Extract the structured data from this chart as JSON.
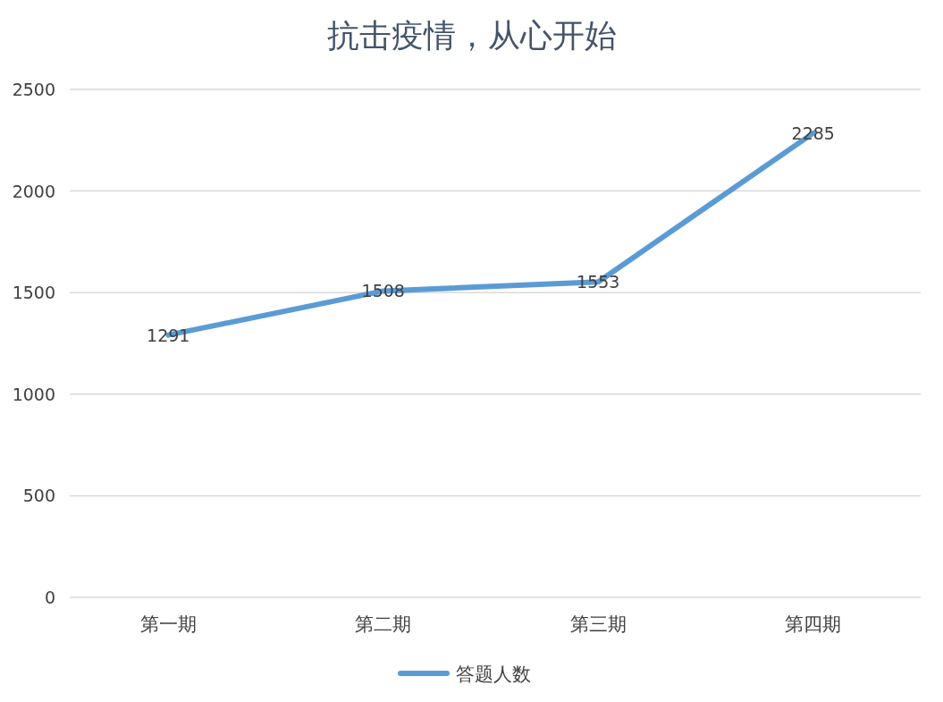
{
  "chart_data": {
    "type": "line",
    "title": "抗击疫情，从心开始",
    "categories": [
      "第一期",
      "第二期",
      "第三期",
      "第四期"
    ],
    "series": [
      {
        "name": "答题人数",
        "color": "#5b9bd5",
        "values": [
          1291,
          1508,
          1553,
          2285
        ]
      }
    ],
    "ylim": [
      0,
      2500
    ],
    "yticks": [
      0,
      500,
      1000,
      1500,
      2000,
      2500
    ],
    "grid": "y",
    "legend": "bottom",
    "data_labels": true,
    "marker": "none",
    "line_style": "solid"
  }
}
